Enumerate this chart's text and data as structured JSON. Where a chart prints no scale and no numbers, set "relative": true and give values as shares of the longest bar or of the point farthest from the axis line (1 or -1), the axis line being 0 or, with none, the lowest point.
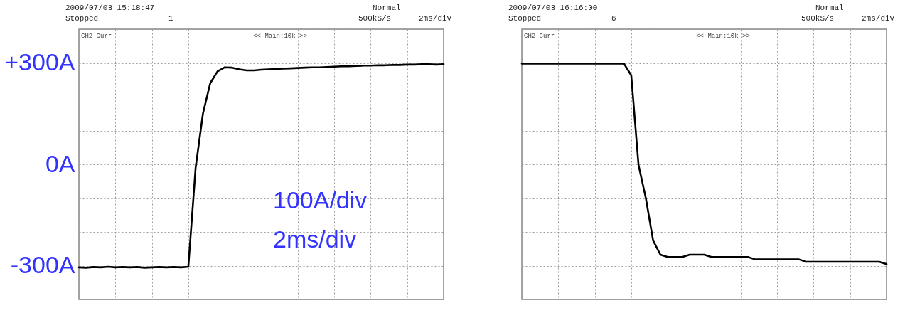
{
  "chart_data": [
    {
      "type": "line",
      "tick_labels": "y",
      "grid": true,
      "line_style": "solid",
      "marker": "none",
      "categories": [
        null,
        null,
        null,
        null,
        null,
        null,
        null,
        null,
        null,
        null,
        null,
        null,
        null,
        null,
        null,
        null,
        null,
        null,
        null,
        null,
        null,
        null,
        null,
        null,
        null,
        null,
        null,
        null,
        null,
        null,
        null,
        null,
        null,
        null,
        null,
        null,
        null,
        null,
        null,
        null,
        null,
        null,
        null,
        null,
        null,
        null,
        null,
        null,
        null,
        null,
        null
      ],
      "ylim": [
        -400,
        400
      ],
      "yticks": [
        {
          "value": -400,
          "label": null
        },
        {
          "value": -300,
          "label": "-300A"
        },
        {
          "value": -200,
          "label": null
        },
        {
          "value": -100,
          "label": null
        },
        {
          "value": 0,
          "label": "0A"
        },
        {
          "value": 100,
          "label": null
        },
        {
          "value": 200,
          "label": null
        },
        {
          "value": 300,
          "label": "+300A"
        },
        {
          "value": 400,
          "label": null
        }
      ],
      "series": [
        {
          "color": "#000000",
          "values": [
            -305,
            -306,
            -304,
            -305,
            -303,
            -305,
            -304,
            -305,
            -304,
            -306,
            -305,
            -304,
            -305,
            -304,
            -305,
            -303,
            -10,
            150,
            240,
            275,
            287,
            286,
            281,
            278,
            278,
            280,
            281,
            282,
            283,
            284,
            285,
            286,
            287,
            287,
            288,
            289,
            290,
            290,
            291,
            292,
            292,
            293,
            293,
            294,
            294,
            295,
            295,
            296,
            296,
            295,
            296
          ]
        }
      ],
      "annotations": [
        "2009/07/03 15:18:47",
        "Stopped",
        "1",
        "Normal",
        "500kS/s",
        "2ms/div",
        "CH2-Curr",
        "<< Main:10k >>",
        "100A/div",
        "2ms/div"
      ]
    },
    {
      "type": "line",
      "tick_labels": false,
      "grid": true,
      "line_style": "solid",
      "marker": "none",
      "categories": [
        null,
        null,
        null,
        null,
        null,
        null,
        null,
        null,
        null,
        null,
        null,
        null,
        null,
        null,
        null,
        null,
        null,
        null,
        null,
        null,
        null,
        null,
        null,
        null,
        null,
        null,
        null,
        null,
        null,
        null,
        null,
        null,
        null,
        null,
        null,
        null,
        null,
        null,
        null,
        null,
        null,
        null,
        null,
        null,
        null,
        null,
        null,
        null,
        null,
        null,
        null
      ],
      "relative": true,
      "series": [
        {
          "color": "#000000",
          "values": [
            1.0,
            1.0,
            1.0,
            1.0,
            1.0,
            1.0,
            1.0,
            1.0,
            1.0,
            1.0,
            1.0,
            1.0,
            1.0,
            1.0,
            1.0,
            0.95,
            0.57,
            0.43,
            0.25,
            0.19,
            0.18,
            0.18,
            0.18,
            0.19,
            0.19,
            0.19,
            0.18,
            0.18,
            0.18,
            0.18,
            0.18,
            0.18,
            0.17,
            0.17,
            0.17,
            0.17,
            0.17,
            0.17,
            0.17,
            0.16,
            0.16,
            0.16,
            0.16,
            0.16,
            0.16,
            0.16,
            0.16,
            0.16,
            0.16,
            0.16,
            0.15
          ]
        }
      ],
      "annotations": [
        "2009/07/03 16:16:00",
        "Stopped",
        "6",
        "Normal",
        "500kS/s",
        "2ms/div",
        "CH2-Curr",
        "<< Main:10k >>"
      ]
    }
  ]
}
